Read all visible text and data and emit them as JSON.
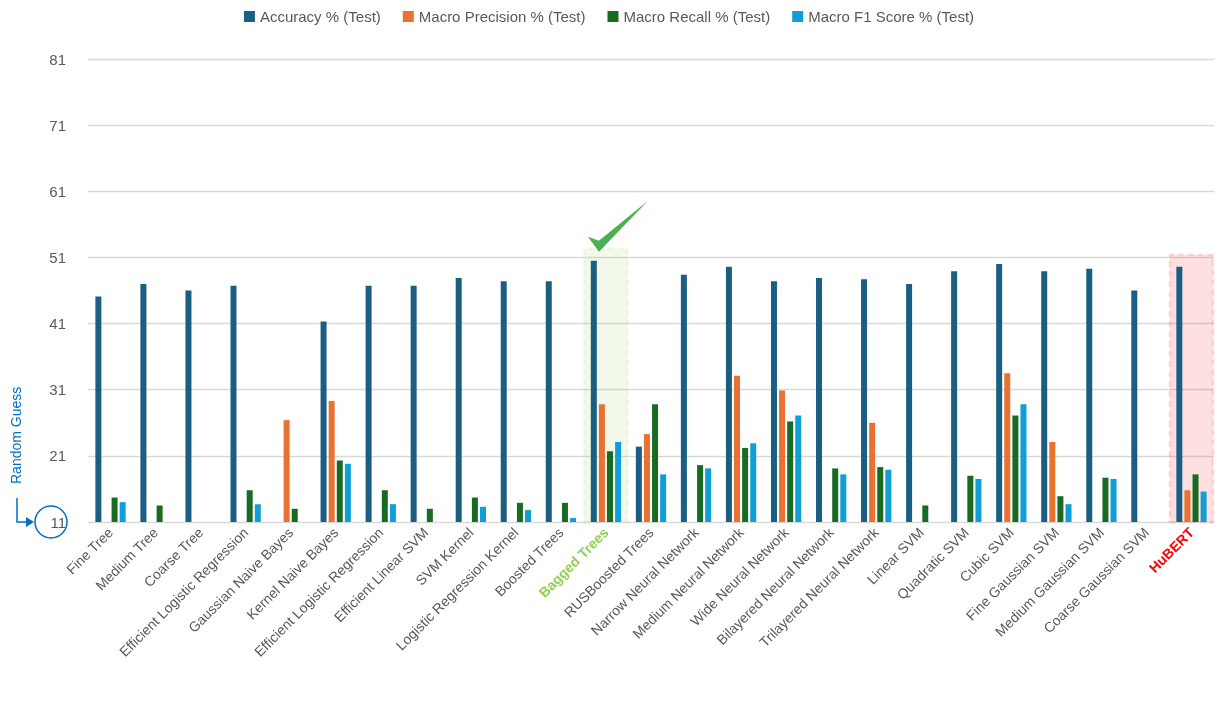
{
  "chart_data": {
    "type": "bar",
    "categories": [
      "Fine Tree",
      "Medium Tree",
      "Coarse Tree",
      "Efficient Logistic Regression",
      "Gaussian Naive Bayes",
      "Kernel Naive Bayes",
      "Efficient Logistic Regression",
      "Efficient Linear SVM",
      "SVM Kernel",
      "Logistic Regression Kernel",
      "Boosted Trees",
      "Bagged Trees",
      "RUSBoosted Trees",
      "Narrow Neural Network",
      "Medium Neural Network",
      "Wide Neural Network",
      "Bilayered Neural Network",
      "Trilayered Neural Network",
      "Linear SVM",
      "Quadratic SVM",
      "Cubic SVM",
      "Fine Gaussian SVM",
      "Medium Gaussian SVM",
      "Coarse Gaussian SVM",
      "HuBERT"
    ],
    "series": [
      {
        "name": "Accuracy % (Test)",
        "color": "#1a5e82",
        "values": [
          45.1,
          47.0,
          46.0,
          46.7,
          null,
          41.3,
          46.7,
          46.7,
          47.9,
          47.4,
          47.4,
          50.5,
          22.4,
          48.4,
          49.6,
          47.4,
          47.9,
          47.7,
          47.0,
          48.9,
          50.0,
          48.9,
          49.3,
          46.0,
          49.6
        ]
      },
      {
        "name": "Macro Precision % (Test)",
        "color": "#e97132",
        "values": [
          null,
          null,
          null,
          null,
          26.4,
          29.3,
          null,
          null,
          null,
          null,
          null,
          28.8,
          24.3,
          null,
          33.1,
          30.9,
          null,
          26.0,
          null,
          null,
          33.5,
          23.1,
          null,
          null,
          15.8
        ]
      },
      {
        "name": "Macro Recall % (Test)",
        "color": "#196b24",
        "values": [
          14.7,
          13.5,
          null,
          15.8,
          13.0,
          20.3,
          15.8,
          13.0,
          14.7,
          13.9,
          13.9,
          21.7,
          28.8,
          19.6,
          22.2,
          26.2,
          19.1,
          19.3,
          13.5,
          18.0,
          27.1,
          14.9,
          17.7,
          null,
          18.2
        ]
      },
      {
        "name": "Macro F1 Score % (Test)",
        "color": "#0f9ed5",
        "values": [
          14.0,
          null,
          null,
          13.7,
          null,
          19.8,
          13.7,
          null,
          13.3,
          12.8,
          11.6,
          23.1,
          18.2,
          19.1,
          22.9,
          27.1,
          18.2,
          18.9,
          null,
          17.5,
          28.8,
          13.7,
          17.5,
          null,
          15.6
        ]
      }
    ],
    "ylim": [
      11,
      81
    ],
    "yticks": [
      11,
      21,
      31,
      41,
      51,
      61,
      71,
      81
    ],
    "grid": "y",
    "legend": "top",
    "annotations": [
      "Random Guess"
    ],
    "bands": [
      {
        "axis": "x",
        "from": "Bagged Trees",
        "to": "Bagged Trees",
        "color": "#92d050"
      },
      {
        "axis": "x",
        "from": "HuBERT",
        "to": "HuBERT",
        "color": "#ff0000"
      }
    ]
  }
}
